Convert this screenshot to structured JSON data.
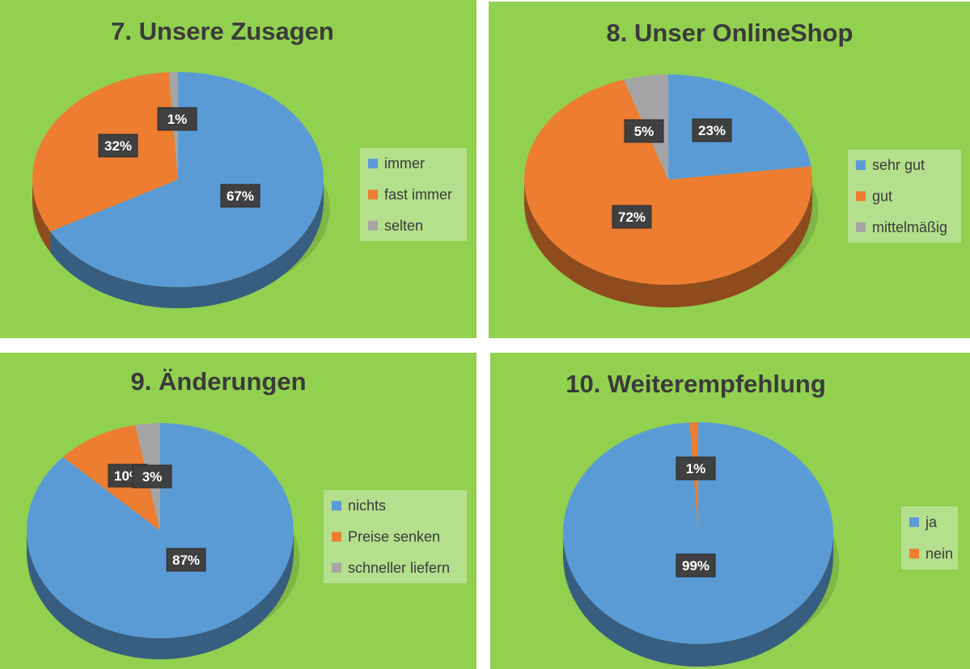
{
  "colors": {
    "background": "#92d050",
    "legend_box": "#b4df8c",
    "label_box": "#404040",
    "label_text": "#ffffff",
    "title_text": "#3a3a3a",
    "blue": "#5b9bd5",
    "orange": "#ed7d31",
    "gray": "#a5a5a5"
  },
  "chart_data": [
    {
      "type": "pie",
      "title": "7. Unsere Zusagen",
      "categories": [
        "immer",
        "fast immer",
        "selten"
      ],
      "values": [
        67,
        32,
        1
      ],
      "labels": [
        "67%",
        "32%",
        "1%"
      ],
      "colors": [
        "#5b9bd5",
        "#ed7d31",
        "#a5a5a5"
      ],
      "legend_position": "right",
      "style": "3d"
    },
    {
      "type": "pie",
      "title": "8. Unser OnlineShop",
      "categories": [
        "sehr gut",
        "gut",
        "mittelmäßig"
      ],
      "values": [
        23,
        72,
        5
      ],
      "labels": [
        "23%",
        "72%",
        "5%"
      ],
      "colors": [
        "#5b9bd5",
        "#ed7d31",
        "#a5a5a5"
      ],
      "legend_position": "right",
      "style": "3d"
    },
    {
      "type": "pie",
      "title": "9. Änderungen",
      "categories": [
        "nichts",
        "Preise senken",
        "schneller liefern"
      ],
      "values": [
        87,
        10,
        3
      ],
      "labels": [
        "87%",
        "10%",
        "3%"
      ],
      "colors": [
        "#5b9bd5",
        "#ed7d31",
        "#a5a5a5"
      ],
      "legend_position": "right",
      "style": "3d"
    },
    {
      "type": "pie",
      "title": "10. Weiterempfehlung",
      "categories": [
        "ja",
        "nein"
      ],
      "values": [
        99,
        1
      ],
      "labels": [
        "99%",
        "1%"
      ],
      "colors": [
        "#5b9bd5",
        "#ed7d31"
      ],
      "legend_position": "right",
      "style": "3d"
    }
  ]
}
